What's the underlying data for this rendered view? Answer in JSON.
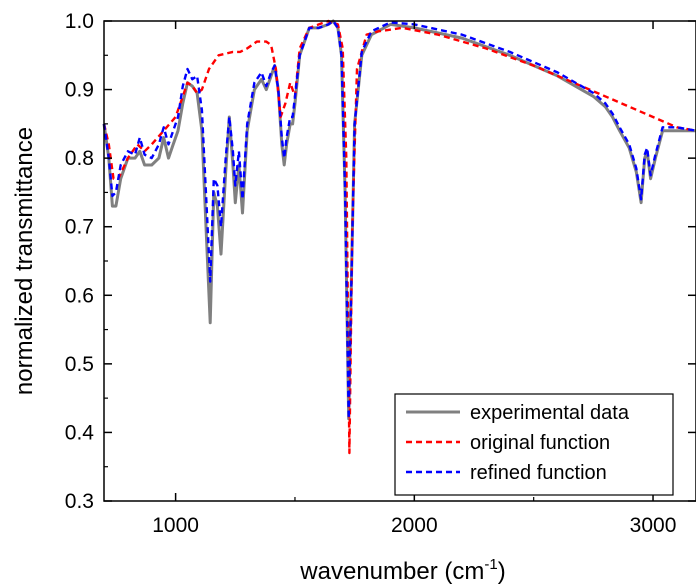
{
  "chart_data": {
    "type": "line",
    "xlabel": "wavenumber (cm",
    "xlabel_sup": "-1",
    "xlabel_close": ")",
    "ylabel": "normalized transmittance",
    "xlim": [
      700,
      3180
    ],
    "ylim": [
      0.3,
      1.0
    ],
    "x_ticks": [
      1000,
      2000,
      3000
    ],
    "x_tick_labels": [
      "1000",
      "2000",
      "3000"
    ],
    "y_ticks": [
      0.3,
      0.4,
      0.5,
      0.6,
      0.7,
      0.8,
      0.9,
      1.0
    ],
    "y_tick_labels": [
      "0.3",
      "0.4",
      "0.5",
      "0.6",
      "0.7",
      "0.8",
      "0.9",
      "1.0"
    ],
    "grid": false,
    "legend_position": "bottom-right",
    "series": [
      {
        "name": "experimental data",
        "color": "#808080",
        "dash": "solid",
        "points": [
          [
            700,
            0.85
          ],
          [
            720,
            0.8
          ],
          [
            735,
            0.73
          ],
          [
            750,
            0.73
          ],
          [
            770,
            0.77
          ],
          [
            800,
            0.8
          ],
          [
            830,
            0.8
          ],
          [
            850,
            0.81
          ],
          [
            870,
            0.79
          ],
          [
            900,
            0.79
          ],
          [
            930,
            0.8
          ],
          [
            950,
            0.83
          ],
          [
            970,
            0.8
          ],
          [
            990,
            0.82
          ],
          [
            1010,
            0.84
          ],
          [
            1030,
            0.88
          ],
          [
            1050,
            0.91
          ],
          [
            1070,
            0.905
          ],
          [
            1090,
            0.895
          ],
          [
            1110,
            0.84
          ],
          [
            1130,
            0.68
          ],
          [
            1145,
            0.56
          ],
          [
            1160,
            0.75
          ],
          [
            1175,
            0.73
          ],
          [
            1190,
            0.66
          ],
          [
            1210,
            0.78
          ],
          [
            1225,
            0.86
          ],
          [
            1240,
            0.79
          ],
          [
            1250,
            0.735
          ],
          [
            1265,
            0.79
          ],
          [
            1280,
            0.72
          ],
          [
            1300,
            0.84
          ],
          [
            1330,
            0.9
          ],
          [
            1360,
            0.915
          ],
          [
            1380,
            0.9
          ],
          [
            1400,
            0.92
          ],
          [
            1415,
            0.935
          ],
          [
            1430,
            0.9
          ],
          [
            1445,
            0.82
          ],
          [
            1455,
            0.79
          ],
          [
            1465,
            0.82
          ],
          [
            1480,
            0.85
          ],
          [
            1490,
            0.85
          ],
          [
            1500,
            0.88
          ],
          [
            1520,
            0.95
          ],
          [
            1560,
            0.99
          ],
          [
            1600,
            0.99
          ],
          [
            1640,
            0.995
          ],
          [
            1660,
            1.0
          ],
          [
            1680,
            0.99
          ],
          [
            1695,
            0.95
          ],
          [
            1710,
            0.75
          ],
          [
            1725,
            0.42
          ],
          [
            1735,
            0.6
          ],
          [
            1750,
            0.85
          ],
          [
            1780,
            0.95
          ],
          [
            1820,
            0.98
          ],
          [
            1900,
            0.995
          ],
          [
            2000,
            0.99
          ],
          [
            2200,
            0.975
          ],
          [
            2400,
            0.95
          ],
          [
            2600,
            0.92
          ],
          [
            2750,
            0.89
          ],
          [
            2800,
            0.875
          ],
          [
            2830,
            0.86
          ],
          [
            2860,
            0.84
          ],
          [
            2900,
            0.815
          ],
          [
            2930,
            0.78
          ],
          [
            2950,
            0.735
          ],
          [
            2965,
            0.8
          ],
          [
            2975,
            0.81
          ],
          [
            2990,
            0.77
          ],
          [
            3010,
            0.8
          ],
          [
            3040,
            0.84
          ],
          [
            3100,
            0.84
          ],
          [
            3180,
            0.84
          ]
        ]
      },
      {
        "name": "original function",
        "color": "#ff0000",
        "dash": "dashed",
        "points": [
          [
            700,
            0.85
          ],
          [
            720,
            0.82
          ],
          [
            740,
            0.77
          ],
          [
            760,
            0.77
          ],
          [
            800,
            0.8
          ],
          [
            840,
            0.82
          ],
          [
            870,
            0.81
          ],
          [
            900,
            0.82
          ],
          [
            950,
            0.84
          ],
          [
            1000,
            0.86
          ],
          [
            1030,
            0.89
          ],
          [
            1050,
            0.91
          ],
          [
            1070,
            0.905
          ],
          [
            1090,
            0.895
          ],
          [
            1110,
            0.9
          ],
          [
            1140,
            0.93
          ],
          [
            1180,
            0.95
          ],
          [
            1240,
            0.955
          ],
          [
            1270,
            0.955
          ],
          [
            1300,
            0.96
          ],
          [
            1340,
            0.97
          ],
          [
            1380,
            0.97
          ],
          [
            1400,
            0.965
          ],
          [
            1420,
            0.93
          ],
          [
            1440,
            0.86
          ],
          [
            1460,
            0.88
          ],
          [
            1480,
            0.91
          ],
          [
            1500,
            0.89
          ],
          [
            1520,
            0.96
          ],
          [
            1560,
            0.99
          ],
          [
            1600,
            0.995
          ],
          [
            1640,
            1.0
          ],
          [
            1680,
            0.995
          ],
          [
            1700,
            0.96
          ],
          [
            1715,
            0.8
          ],
          [
            1728,
            0.37
          ],
          [
            1740,
            0.7
          ],
          [
            1760,
            0.93
          ],
          [
            1800,
            0.98
          ],
          [
            1850,
            0.985
          ],
          [
            1950,
            0.99
          ],
          [
            2100,
            0.98
          ],
          [
            2300,
            0.96
          ],
          [
            2500,
            0.935
          ],
          [
            2700,
            0.905
          ],
          [
            2900,
            0.875
          ],
          [
            3000,
            0.86
          ],
          [
            3100,
            0.845
          ],
          [
            3180,
            0.84
          ]
        ]
      },
      {
        "name": "refined function",
        "color": "#0000ff",
        "dash": "dashed",
        "points": [
          [
            700,
            0.85
          ],
          [
            720,
            0.8
          ],
          [
            735,
            0.745
          ],
          [
            750,
            0.75
          ],
          [
            770,
            0.79
          ],
          [
            800,
            0.81
          ],
          [
            830,
            0.805
          ],
          [
            850,
            0.83
          ],
          [
            870,
            0.805
          ],
          [
            900,
            0.8
          ],
          [
            930,
            0.82
          ],
          [
            950,
            0.845
          ],
          [
            970,
            0.82
          ],
          [
            990,
            0.84
          ],
          [
            1010,
            0.86
          ],
          [
            1030,
            0.905
          ],
          [
            1050,
            0.93
          ],
          [
            1070,
            0.915
          ],
          [
            1090,
            0.92
          ],
          [
            1110,
            0.87
          ],
          [
            1130,
            0.73
          ],
          [
            1145,
            0.62
          ],
          [
            1160,
            0.77
          ],
          [
            1175,
            0.76
          ],
          [
            1190,
            0.7
          ],
          [
            1210,
            0.8
          ],
          [
            1225,
            0.86
          ],
          [
            1240,
            0.81
          ],
          [
            1250,
            0.76
          ],
          [
            1265,
            0.81
          ],
          [
            1280,
            0.74
          ],
          [
            1300,
            0.85
          ],
          [
            1330,
            0.91
          ],
          [
            1360,
            0.925
          ],
          [
            1380,
            0.905
          ],
          [
            1400,
            0.925
          ],
          [
            1415,
            0.935
          ],
          [
            1430,
            0.9
          ],
          [
            1445,
            0.83
          ],
          [
            1455,
            0.8
          ],
          [
            1465,
            0.83
          ],
          [
            1480,
            0.86
          ],
          [
            1490,
            0.86
          ],
          [
            1500,
            0.89
          ],
          [
            1520,
            0.95
          ],
          [
            1560,
            0.99
          ],
          [
            1600,
            0.99
          ],
          [
            1640,
            0.995
          ],
          [
            1660,
            1.0
          ],
          [
            1680,
            0.99
          ],
          [
            1695,
            0.95
          ],
          [
            1710,
            0.75
          ],
          [
            1725,
            0.42
          ],
          [
            1735,
            0.6
          ],
          [
            1750,
            0.85
          ],
          [
            1780,
            0.955
          ],
          [
            1820,
            0.985
          ],
          [
            1900,
            0.998
          ],
          [
            2000,
            0.995
          ],
          [
            2200,
            0.98
          ],
          [
            2400,
            0.955
          ],
          [
            2600,
            0.925
          ],
          [
            2750,
            0.895
          ],
          [
            2800,
            0.88
          ],
          [
            2830,
            0.865
          ],
          [
            2860,
            0.845
          ],
          [
            2900,
            0.82
          ],
          [
            2930,
            0.785
          ],
          [
            2950,
            0.74
          ],
          [
            2965,
            0.805
          ],
          [
            2975,
            0.815
          ],
          [
            2990,
            0.775
          ],
          [
            3010,
            0.805
          ],
          [
            3040,
            0.845
          ],
          [
            3100,
            0.845
          ],
          [
            3180,
            0.84
          ]
        ]
      }
    ]
  }
}
